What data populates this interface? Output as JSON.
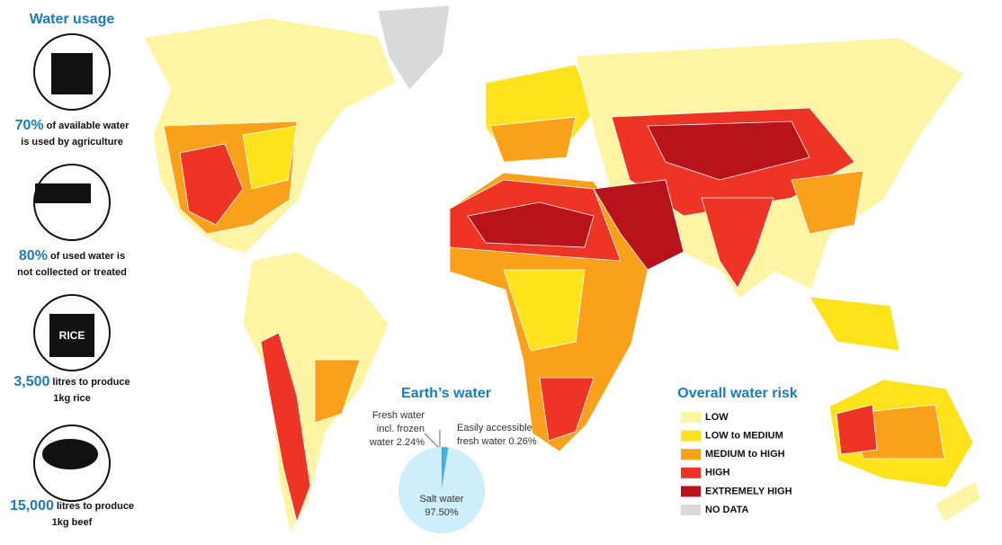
{
  "sidebar": {
    "title": "Water usage",
    "icon_text": "RICE",
    "stats": [
      {
        "figure": "70%",
        "lines": [
          "of available water",
          "is used by agriculture"
        ]
      },
      {
        "figure": "80%",
        "lines": [
          "of used water is",
          "not collected or treated"
        ]
      },
      {
        "figure": "3,500",
        "lines": [
          "litres to produce",
          "1kg rice"
        ]
      },
      {
        "figure": "15,000",
        "lines": [
          "litres to produce",
          "1kg beef"
        ]
      }
    ]
  },
  "legend": {
    "title": "Overall water risk",
    "items": [
      {
        "label": "LOW",
        "color": "#fdf5a3"
      },
      {
        "label": "LOW to MEDIUM",
        "color": "#fde21c"
      },
      {
        "label": "MEDIUM to HIGH",
        "color": "#f9a11b"
      },
      {
        "label": "HIGH",
        "color": "#ee3424"
      },
      {
        "label": "EXTREMELY HIGH",
        "color": "#b8121b"
      },
      {
        "label": "NO DATA",
        "color": "#d9d9d9"
      }
    ]
  },
  "chart_data": {
    "type": "pie",
    "title": "Earth’s water",
    "categories": [
      "Easily accessible fresh water",
      "Fresh water incl. frozen water",
      "Salt water"
    ],
    "values": [
      0.26,
      2.24,
      97.5
    ],
    "value_labels": [
      "0.26%",
      "2.24%",
      "97.50%"
    ],
    "colors": [
      "#1a78c2",
      "#3bb4ea",
      "#cdeefa"
    ]
  }
}
